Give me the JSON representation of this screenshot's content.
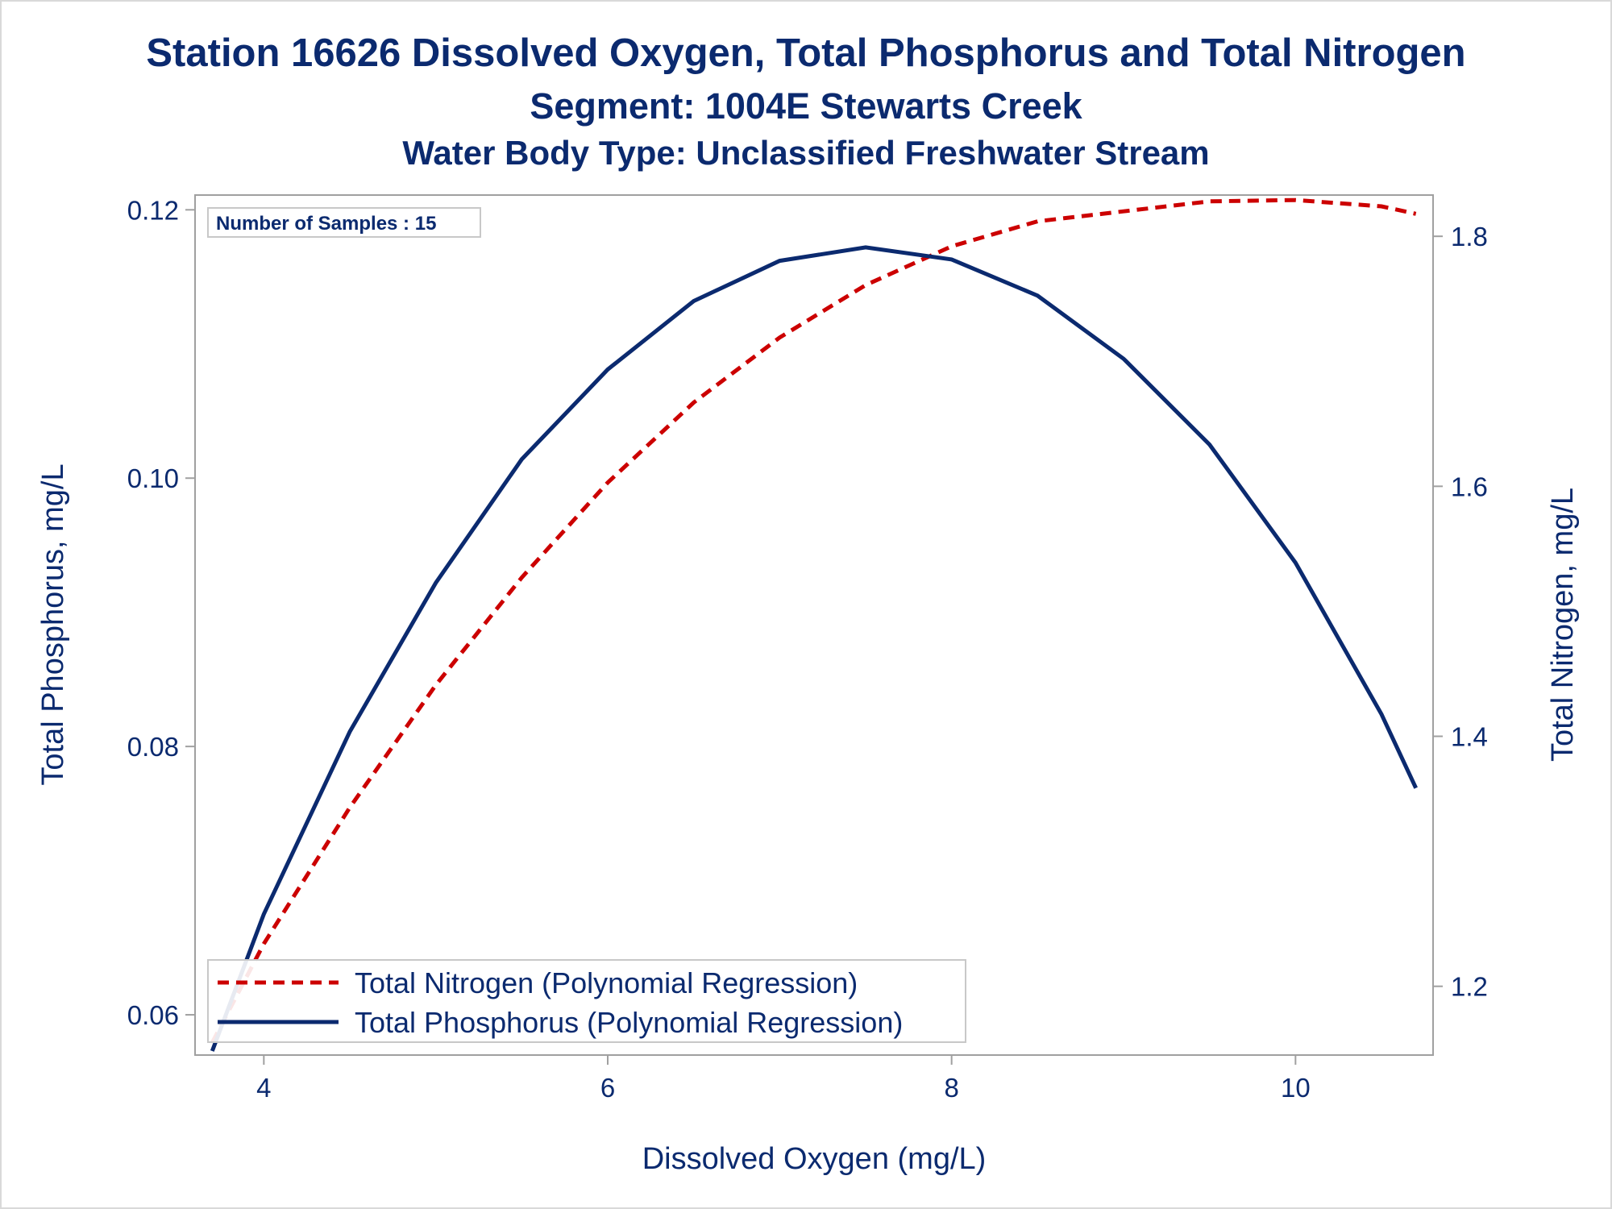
{
  "titles": {
    "line1": "Station 16626  Dissolved Oxygen, Total Phosphorus and Total Nitrogen",
    "line2": "Segment: 1004E  Stewarts Creek",
    "line3": "Water Body Type: Unclassified Freshwater Stream"
  },
  "inset": {
    "samples_label": "Number of Samples : 15"
  },
  "colors": {
    "text": "#0b2a6f",
    "phosphorus": "#0b2a6f",
    "nitrogen": "#cc0000",
    "frame": "#a0a0a0"
  },
  "chart_data": {
    "type": "line",
    "xlabel": "Dissolved Oxygen (mg/L)",
    "ylabel": "Total Phosphorus, mg/L",
    "y2label": "Total Nitrogen, mg/L",
    "xlim": [
      3.6,
      10.8
    ],
    "ylim": [
      0.057,
      0.1211
    ],
    "y2lim": [
      1.145,
      1.833
    ],
    "xticks": [
      "4",
      "6",
      "8",
      "10"
    ],
    "yticks": [
      "0.06",
      "0.08",
      "0.10",
      "0.12"
    ],
    "y2ticks": [
      "1.2",
      "1.4",
      "1.6",
      "1.8"
    ],
    "grid": false,
    "legend_position": "bottom-left",
    "series": [
      {
        "name": "Total Nitrogen (Polynomial Regression)",
        "axis": "right",
        "style": "dashed",
        "x": [
          3.7,
          4.0,
          4.5,
          5.0,
          5.5,
          6.0,
          6.5,
          7.0,
          7.5,
          8.0,
          8.5,
          9.0,
          9.5,
          10.0,
          10.5,
          10.7
        ],
        "y": [
          1.155,
          1.234,
          1.343,
          1.441,
          1.527,
          1.603,
          1.667,
          1.719,
          1.761,
          1.792,
          1.812,
          1.82,
          1.828,
          1.829,
          1.824,
          1.818
        ]
      },
      {
        "name": "Total Phosphorus (Polynomial Regression)",
        "axis": "left",
        "style": "solid",
        "x": [
          3.7,
          4.0,
          4.5,
          5.0,
          5.5,
          6.0,
          6.5,
          7.0,
          7.5,
          8.0,
          8.5,
          9.0,
          9.5,
          10.0,
          10.5,
          10.7
        ],
        "y": [
          0.0573,
          0.0675,
          0.0811,
          0.0922,
          0.1014,
          0.1081,
          0.1132,
          0.1162,
          0.1172,
          0.1163,
          0.1136,
          0.1089,
          0.1025,
          0.0937,
          0.0824,
          0.0769
        ]
      }
    ]
  }
}
